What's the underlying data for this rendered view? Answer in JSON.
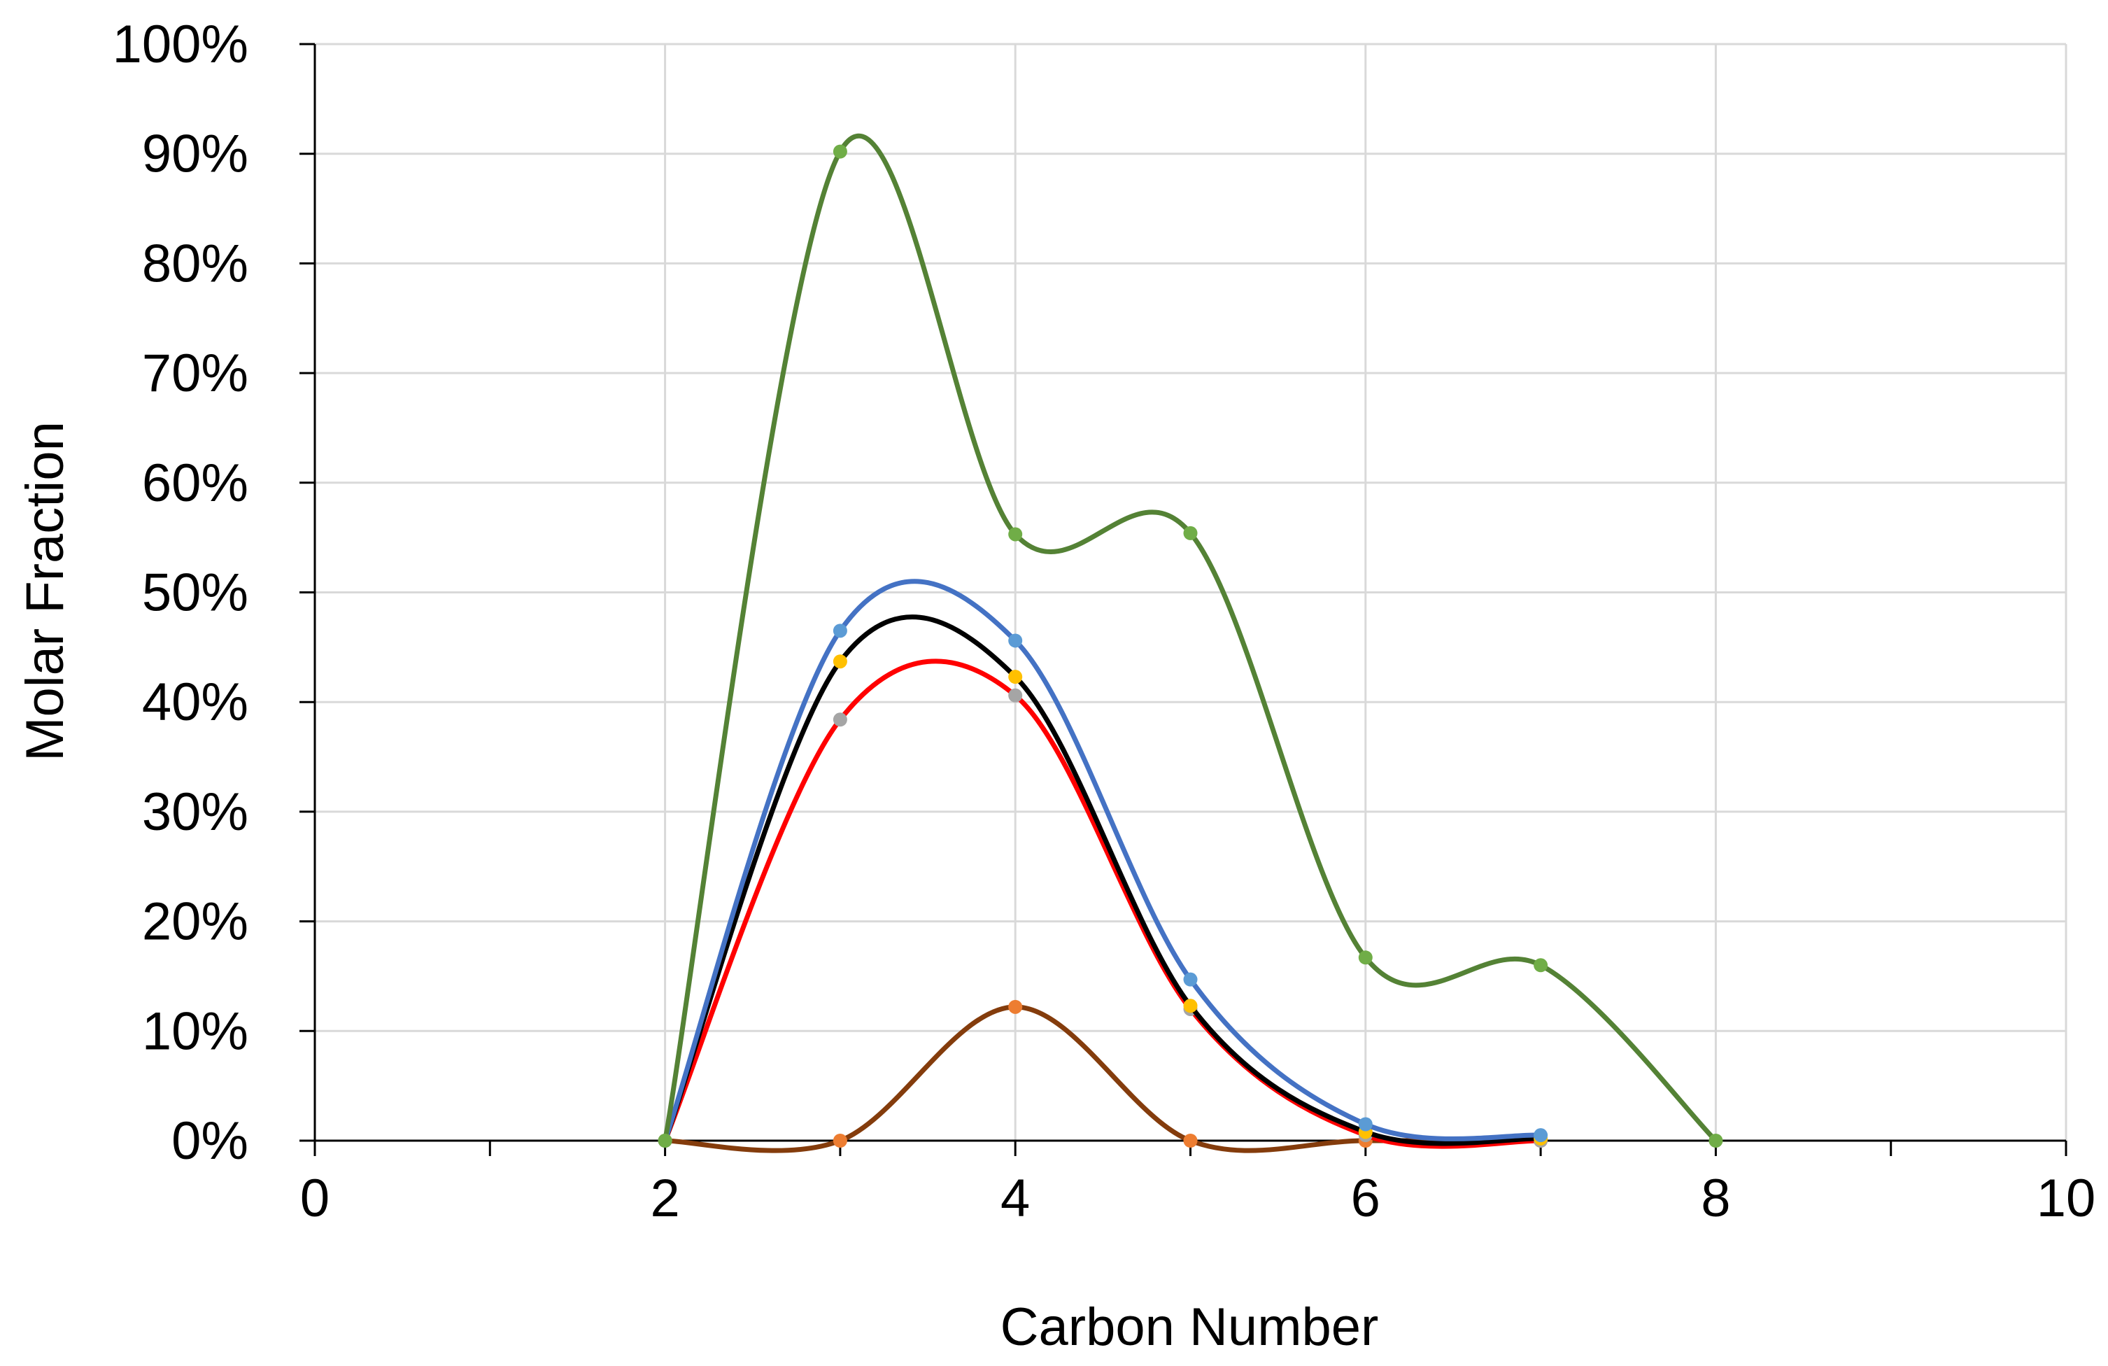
{
  "chart_data": {
    "type": "scatter",
    "title": "",
    "xlabel": "Carbon Number",
    "ylabel": "Molar Fraction",
    "xlim": [
      0,
      10
    ],
    "ylim": [
      0,
      1
    ],
    "x_ticks": [
      0,
      2,
      4,
      6,
      8,
      10
    ],
    "x_tick_labels": [
      "0",
      "2",
      "4",
      "6",
      "8",
      "10"
    ],
    "y_ticks": [
      0,
      0.1,
      0.2,
      0.3,
      0.4,
      0.5,
      0.6,
      0.7,
      0.8,
      0.9,
      1.0
    ],
    "y_tick_labels": [
      "0%",
      "10%",
      "20%",
      "30%",
      "40%",
      "50%",
      "60%",
      "70%",
      "80%",
      "90%",
      "100%"
    ],
    "grid": true,
    "legend": "none",
    "smooth_lines": true,
    "series": [
      {
        "line_color": "#843C0C",
        "marker_color": "#ED7D31",
        "x": [
          2,
          3,
          4,
          5,
          6,
          7
        ],
        "y": [
          0,
          0,
          0.122,
          0,
          0,
          0
        ]
      },
      {
        "line_color": "#FF0000",
        "marker_color": "#A5A5A5",
        "x": [
          2,
          3,
          4,
          5,
          6,
          7
        ],
        "y": [
          0,
          0.384,
          0.406,
          0.12,
          0.005,
          0
        ]
      },
      {
        "line_color": "#000000",
        "marker_color": "#FFC000",
        "x": [
          2,
          3,
          4,
          5,
          6,
          7
        ],
        "y": [
          0,
          0.437,
          0.423,
          0.123,
          0.008,
          0.002
        ]
      },
      {
        "line_color": "#4472C4",
        "marker_color": "#5B9BD5",
        "x": [
          2,
          3,
          4,
          5,
          6,
          7
        ],
        "y": [
          0,
          0.465,
          0.456,
          0.147,
          0.015,
          0.005
        ]
      },
      {
        "line_color": "#548235",
        "marker_color": "#70AD47",
        "x": [
          2,
          3,
          4,
          5,
          6,
          7,
          8
        ],
        "y": [
          0,
          0.902,
          0.553,
          0.554,
          0.167,
          0.16,
          0
        ]
      }
    ]
  }
}
